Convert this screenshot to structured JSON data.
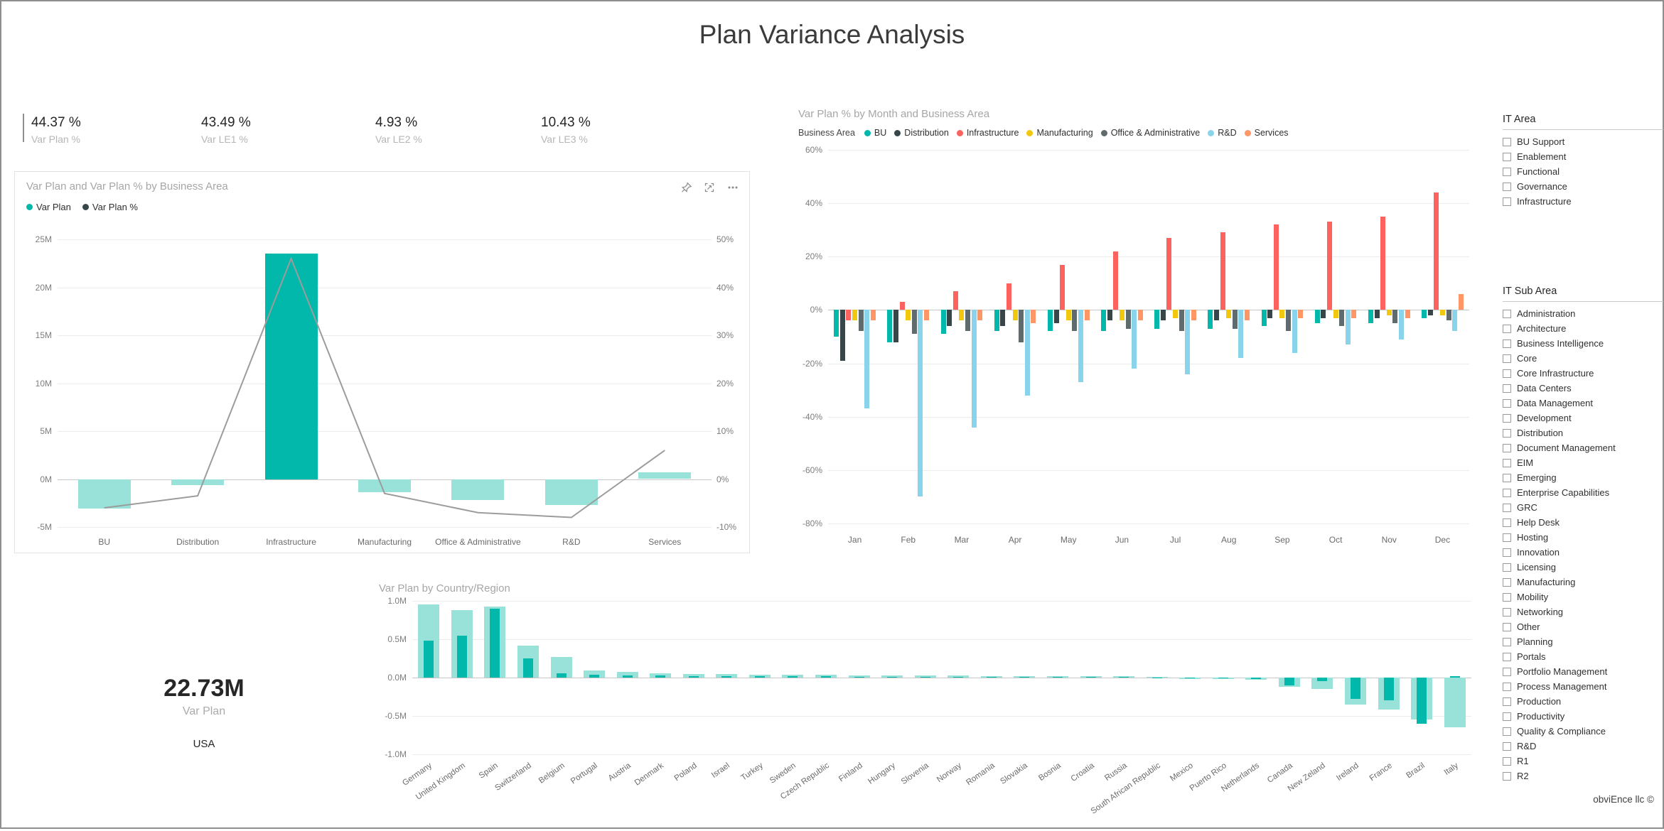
{
  "page": {
    "title": "Plan Variance Analysis",
    "footer": "obviEnce llc ©"
  },
  "colors": {
    "teal": "#01B8AA",
    "teal_light": "#99E2D9",
    "dark": "#374649",
    "red": "#FD625E",
    "yellow": "#F2C80F",
    "gray": "#5F6B6D",
    "light_blue": "#8AD4EB",
    "peach": "#FE9666",
    "line_gray": "#9C9C9C"
  },
  "kpis": [
    {
      "value": "44.37 %",
      "label": "Var Plan %"
    },
    {
      "value": "43.49 %",
      "label": "Var LE1 %"
    },
    {
      "value": "4.93 %",
      "label": "Var LE2 %"
    },
    {
      "value": "10.43 %",
      "label": "Var LE3 %"
    }
  ],
  "kpi_card": {
    "value": "22.73M",
    "label": "Var Plan",
    "region": "USA"
  },
  "chart_actions": [
    "pin-visual",
    "focus-mode",
    "more-options"
  ],
  "chart_data": [
    {
      "type": "bar",
      "subtype": "combo-bar-line",
      "title": "Var Plan and Var Plan % by Business Area",
      "categories": [
        "BU",
        "Distribution",
        "Infrastructure",
        "Manufacturing",
        "Office & Administrative",
        "R&D",
        "Services"
      ],
      "bar_series": {
        "name": "Var Plan",
        "unit": "M",
        "values": [
          -3.1,
          -0.6,
          23.5,
          -1.4,
          -2.2,
          -2.7,
          0.7
        ],
        "highlighted_category": "Infrastructure"
      },
      "line_series": {
        "name": "Var Plan %",
        "unit": "%",
        "values": [
          -6,
          -3.5,
          46,
          -3,
          -7,
          -8,
          6
        ]
      },
      "y_left": {
        "min": -5,
        "max": 25,
        "step": 5,
        "tick_labels": [
          "25M",
          "20M",
          "15M",
          "10M",
          "5M",
          "0M",
          "-5M"
        ]
      },
      "y_right": {
        "min": -10,
        "max": 50,
        "step": 10,
        "tick_labels": [
          "50%",
          "40%",
          "30%",
          "20%",
          "10%",
          "0%",
          "-10%"
        ]
      },
      "grid": true,
      "legend_position": "top-left"
    },
    {
      "type": "bar",
      "subtype": "clustered-column",
      "title": "Var Plan % by Month and Business Area",
      "legend_title": "Business Area",
      "categories": [
        "Jan",
        "Feb",
        "Mar",
        "Apr",
        "May",
        "Jun",
        "Jul",
        "Aug",
        "Sep",
        "Oct",
        "Nov",
        "Dec"
      ],
      "series": [
        {
          "name": "BU",
          "color": "teal",
          "values": [
            -10,
            -12,
            -9,
            -8,
            -8,
            -8,
            -7,
            -7,
            -6,
            -5,
            -5,
            -3
          ]
        },
        {
          "name": "Distribution",
          "color": "dark",
          "values": [
            -19,
            -12,
            -6,
            -6,
            -5,
            -4,
            -4,
            -4,
            -3,
            -3,
            -3,
            -2
          ]
        },
        {
          "name": "Infrastructure",
          "color": "red",
          "values": [
            -4,
            3,
            7,
            10,
            17,
            22,
            27,
            29,
            32,
            33,
            35,
            44
          ]
        },
        {
          "name": "Manufacturing",
          "color": "yellow",
          "values": [
            -4,
            -4,
            -4,
            -4,
            -4,
            -4,
            -3,
            -3,
            -3,
            -3,
            -2,
            -2
          ]
        },
        {
          "name": "Office & Administrative",
          "color": "gray",
          "values": [
            -8,
            -9,
            -8,
            -12,
            -8,
            -7,
            -8,
            -7,
            -8,
            -6,
            -5,
            -4
          ]
        },
        {
          "name": "R&D",
          "color": "light_blue",
          "values": [
            -37,
            -70,
            -44,
            -32,
            -27,
            -22,
            -24,
            -18,
            -16,
            -13,
            -11,
            -8
          ]
        },
        {
          "name": "Services",
          "color": "peach",
          "values": [
            -4,
            -4,
            -4,
            -5,
            -4,
            -4,
            -4,
            -4,
            -3,
            -3,
            -3,
            6
          ]
        }
      ],
      "y": {
        "min": -80,
        "max": 60,
        "step": 20,
        "tick_labels": [
          "60%",
          "40%",
          "20%",
          "0%",
          "-20%",
          "-40%",
          "-60%",
          "-80%"
        ]
      },
      "unit": "%",
      "grid": true,
      "legend_position": "top-left"
    },
    {
      "type": "bar",
      "subtype": "column-with-highlight",
      "title": "Var Plan by Country/Region",
      "categories": [
        "Germany",
        "United Kingdom",
        "Spain",
        "Switzerland",
        "Belgium",
        "Portugal",
        "Austria",
        "Denmark",
        "Poland",
        "Israel",
        "Turkey",
        "Sweden",
        "Czech Republic",
        "Finland",
        "Hungary",
        "Slovenia",
        "Norway",
        "Romania",
        "Slovakia",
        "Bosnia",
        "Croatia",
        "Russia",
        "South African Republic",
        "Mexico",
        "Puerto Rico",
        "Netherlands",
        "Canada",
        "New Zeland",
        "Ireland",
        "France",
        "Brazil",
        "Italy"
      ],
      "series": [
        {
          "name": "total",
          "color": "teal_light",
          "values": [
            0.95,
            0.88,
            0.93,
            0.42,
            0.27,
            0.09,
            0.07,
            0.06,
            0.05,
            0.05,
            0.04,
            0.04,
            0.04,
            0.03,
            0.03,
            0.03,
            0.03,
            0.02,
            0.02,
            0.02,
            0.02,
            0.02,
            0.01,
            -0.02,
            -0.02,
            -0.03,
            -0.12,
            -0.15,
            -0.35,
            -0.42,
            -0.55,
            -0.65
          ]
        },
        {
          "name": "highlighted",
          "color": "teal",
          "values": [
            0.48,
            0.55,
            0.9,
            0.25,
            0.06,
            0.04,
            0.03,
            0.03,
            0.02,
            0.02,
            0.02,
            0.02,
            0.02,
            0.01,
            0.01,
            0.01,
            0.01,
            0.01,
            0.01,
            0.01,
            0.01,
            0.01,
            0.0,
            -0.01,
            -0.01,
            -0.02,
            -0.1,
            -0.05,
            -0.28,
            -0.3,
            -0.6,
            0.02
          ]
        }
      ],
      "y": {
        "min": -1,
        "max": 1,
        "step": 0.5,
        "tick_labels": [
          "1.0M",
          "0.5M",
          "0.0M",
          "-0.5M",
          "-1.0M"
        ]
      },
      "unit": "M",
      "grid": true,
      "x_label_rotation": -35,
      "legend_position": "none"
    }
  ],
  "slicers": [
    {
      "title": "IT Area",
      "items": [
        "BU Support",
        "Enablement",
        "Functional",
        "Governance",
        "Infrastructure"
      ]
    },
    {
      "title": "IT Sub Area",
      "items": [
        "Administration",
        "Architecture",
        "Business Intelligence",
        "Core",
        "Core Infrastructure",
        "Data Centers",
        "Data Management",
        "Development",
        "Distribution",
        "Document Management",
        "EIM",
        "Emerging",
        "Enterprise Capabilities",
        "GRC",
        "Help Desk",
        "Hosting",
        "Innovation",
        "Licensing",
        "Manufacturing",
        "Mobility",
        "Networking",
        "Other",
        "Planning",
        "Portals",
        "Portfolio Management",
        "Process Management",
        "Production",
        "Productivity",
        "Quality & Compliance",
        "R&D",
        "R1",
        "R2"
      ]
    }
  ]
}
